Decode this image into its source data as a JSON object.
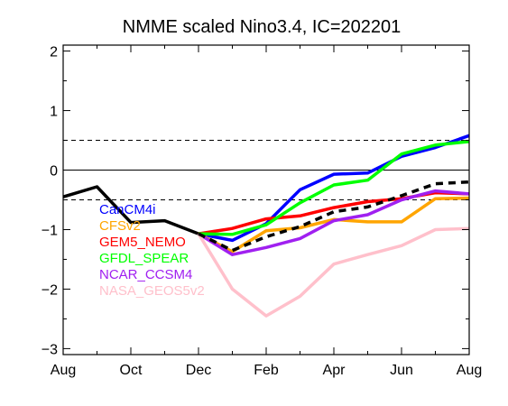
{
  "chart_data": {
    "type": "line",
    "title": "NMME scaled Nino3.4, IC=202201",
    "xlabel": "",
    "ylabel": "",
    "x_ticks": [
      {
        "x": 0,
        "label": "Aug"
      },
      {
        "x": 2,
        "label": "Oct"
      },
      {
        "x": 4,
        "label": "Dec"
      },
      {
        "x": 6,
        "label": "Feb"
      },
      {
        "x": 8,
        "label": "Apr"
      },
      {
        "x": 10,
        "label": "Jun"
      },
      {
        "x": 12,
        "label": "Aug"
      }
    ],
    "xlim": [
      0,
      12
    ],
    "ylim": [
      -3.1,
      2.1
    ],
    "y_ticks": [
      {
        "y": 2,
        "label": "2"
      },
      {
        "y": 1,
        "label": "1"
      },
      {
        "y": 0,
        "label": "0"
      },
      {
        "y": -1,
        "label": "−1"
      },
      {
        "y": -2,
        "label": "−2"
      },
      {
        "y": -3,
        "label": "−3"
      }
    ],
    "reference_lines": [
      {
        "y": 0,
        "style": "solid"
      },
      {
        "y": 0.5,
        "style": "dashed"
      },
      {
        "y": -0.5,
        "style": "dashed"
      }
    ],
    "observed": {
      "color": "#000000",
      "x": [
        0,
        1,
        2,
        3,
        4
      ],
      "values": [
        -0.45,
        -0.28,
        -0.88,
        -0.85,
        -1.07
      ]
    },
    "mean": {
      "color": "#000000",
      "style": "dashed",
      "x": [
        4,
        5,
        6,
        7,
        8,
        9,
        10,
        11,
        12
      ],
      "values": [
        -1.07,
        -1.35,
        -1.12,
        -0.95,
        -0.7,
        -0.62,
        -0.43,
        -0.23,
        -0.2
      ]
    },
    "series": [
      {
        "name": "CanCM4i",
        "color": "#0000ff",
        "x": [
          4,
          5,
          6,
          7,
          8,
          9,
          10,
          11,
          12
        ],
        "values": [
          -1.07,
          -1.18,
          -0.9,
          -0.33,
          -0.07,
          -0.05,
          0.23,
          0.38,
          0.58
        ]
      },
      {
        "name": "CFSv2",
        "color": "#ffa500",
        "x": [
          4,
          5,
          6,
          7,
          8,
          9,
          10,
          11,
          12
        ],
        "values": [
          -1.07,
          -1.37,
          -1.02,
          -0.97,
          -0.83,
          -0.87,
          -0.87,
          -0.48,
          -0.47
        ]
      },
      {
        "name": "GEM5_NEMO",
        "color": "#ff0000",
        "x": [
          4,
          5,
          6,
          7,
          8,
          9,
          10,
          11,
          12
        ],
        "values": [
          -1.07,
          -0.98,
          -0.82,
          -0.77,
          -0.63,
          -0.53,
          -0.48,
          -0.38,
          -0.4
        ]
      },
      {
        "name": "GFDL_SPEAR",
        "color": "#00ff00",
        "x": [
          4,
          5,
          6,
          7,
          8,
          9,
          10,
          11,
          12
        ],
        "values": [
          -1.07,
          -1.08,
          -0.92,
          -0.55,
          -0.25,
          -0.17,
          0.27,
          0.42,
          0.48
        ]
      },
      {
        "name": "NCAR_CCSM4",
        "color": "#a020f0",
        "x": [
          4,
          5,
          6,
          7,
          8,
          9,
          10,
          11,
          12
        ],
        "values": [
          -1.07,
          -1.42,
          -1.3,
          -1.15,
          -0.85,
          -0.75,
          -0.5,
          -0.35,
          -0.4
        ]
      },
      {
        "name": "NASA_GEOS5v2",
        "color": "#ffc0cb",
        "x": [
          4,
          5,
          6,
          7,
          8,
          9,
          10,
          11,
          12
        ],
        "values": [
          -1.07,
          -2.0,
          -2.45,
          -2.12,
          -1.58,
          -1.42,
          -1.27,
          -1.0,
          -0.98
        ]
      }
    ],
    "legend": {
      "placement": "left",
      "items": [
        "CanCM4i",
        "CFSv2",
        "GEM5_NEMO",
        "GFDL_SPEAR",
        "NCAR_CCSM4",
        "NASA_GEOS5v2"
      ]
    },
    "grid": false
  }
}
